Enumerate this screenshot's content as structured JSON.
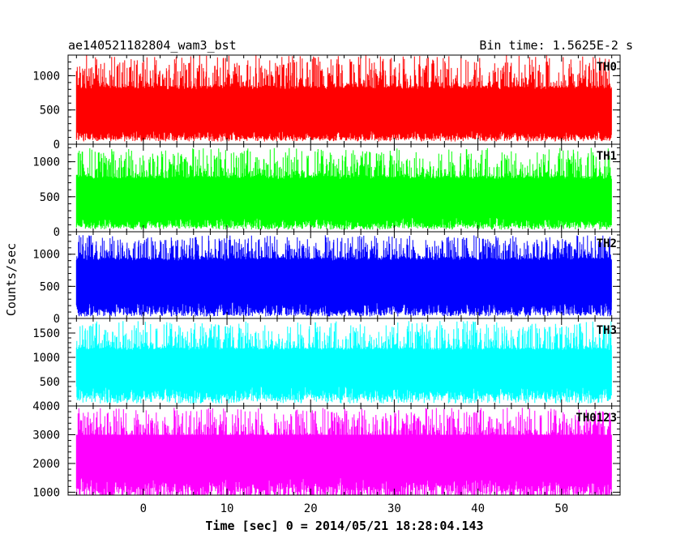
{
  "chart_data": {
    "type": "line",
    "title": "ae140521182804_wam3_bst",
    "subtitle": "Bin time: 1.5625E-2 s",
    "xlabel": "Time [sec] 0 = 2014/05/21 18:28:04.143",
    "ylabel": "Counts/sec",
    "xlim": [
      -9,
      57
    ],
    "x_range_data": [
      -8,
      56
    ],
    "xticks": [
      0,
      10,
      20,
      30,
      40,
      50
    ],
    "x_minor_step": 2,
    "grid": false,
    "panels": [
      {
        "name": "TH0",
        "color": "#ff0000",
        "ylim": [
          0,
          1300
        ],
        "yticks": [
          0,
          500,
          1000
        ],
        "y_minor_step": 100,
        "band_low": [
          40,
          120
        ],
        "band_high": [
          850,
          1300
        ],
        "core": [
          200,
          800
        ]
      },
      {
        "name": "TH1",
        "color": "#00ff00",
        "ylim": [
          0,
          1250
        ],
        "yticks": [
          0,
          500,
          1000
        ],
        "y_minor_step": 100,
        "band_low": [
          30,
          110
        ],
        "band_high": [
          800,
          1200
        ],
        "core": [
          200,
          750
        ]
      },
      {
        "name": "TH2",
        "color": "#0000ff",
        "ylim": [
          0,
          1350
        ],
        "yticks": [
          0,
          500,
          1000
        ],
        "y_minor_step": 100,
        "band_low": [
          30,
          110
        ],
        "band_high": [
          950,
          1300
        ],
        "core": [
          250,
          900
        ]
      },
      {
        "name": "TH3",
        "color": "#00ffff",
        "ylim": [
          0,
          1800
        ],
        "yticks": [
          500,
          1000,
          1500
        ],
        "y_minor_step": 100,
        "band_low": [
          50,
          260
        ],
        "band_high": [
          1200,
          1750
        ],
        "core": [
          400,
          1150
        ]
      },
      {
        "name": "TH0123",
        "color": "#ff00ff",
        "ylim": [
          900,
          4000
        ],
        "yticks": [
          1000,
          2000,
          3000,
          4000
        ],
        "y_minor_step": 200,
        "band_low": [
          950,
          1500
        ],
        "band_high": [
          3000,
          3950
        ],
        "core": [
          1500,
          3000
        ]
      }
    ]
  }
}
